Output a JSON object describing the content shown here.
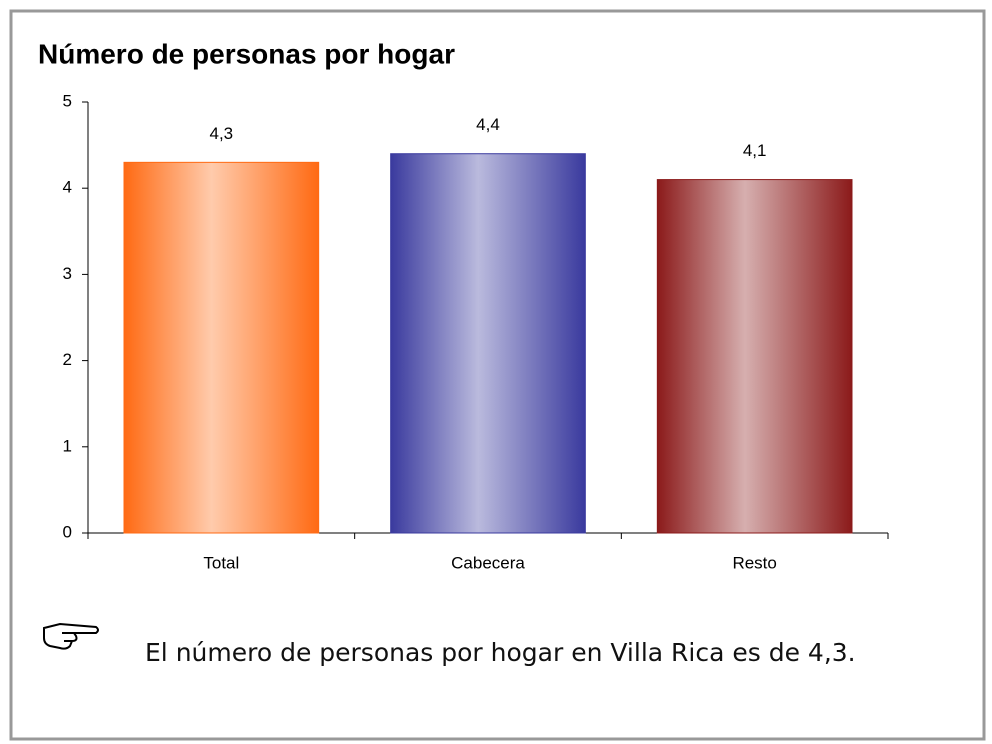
{
  "chart_data": {
    "type": "bar",
    "title": "Número de personas por hogar",
    "categories": [
      "Total",
      "Cabecera",
      "Resto"
    ],
    "values": [
      4.3,
      4.4,
      4.1
    ],
    "value_labels": [
      "4,3",
      "4,4",
      "4,1"
    ],
    "colors": [
      "#ff6a13",
      "#3a3a9e",
      "#8b1a1a"
    ],
    "ylim": [
      0,
      5
    ],
    "yticks": [
      0,
      1,
      2,
      3,
      4,
      5
    ],
    "grid": false
  },
  "note": "El número de personas por hogar en Villa Rica es de 4,3."
}
